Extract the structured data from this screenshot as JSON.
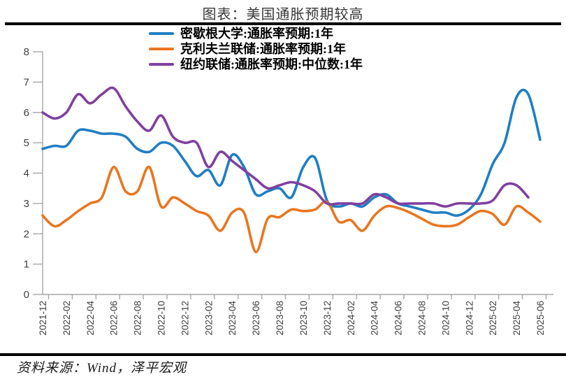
{
  "title": "图表：美国通胀预期较高",
  "source": "资料来源：Wind，泽平宏观",
  "chart_data": {
    "type": "line",
    "title": "图表：美国通胀预期较高",
    "xlabel": "",
    "ylabel": "",
    "ylim": [
      0,
      8
    ],
    "yticks": [
      0,
      1,
      2,
      3,
      4,
      5,
      6,
      7,
      8
    ],
    "grid": false,
    "legend_position": "top-left-inside",
    "x_tick_interval": 2,
    "axis_color": "#a6a6a6",
    "tick_label_color": "#404040",
    "x": [
      "2021-12",
      "2022-01",
      "2022-02",
      "2022-03",
      "2022-04",
      "2022-05",
      "2022-06",
      "2022-07",
      "2022-08",
      "2022-09",
      "2022-10",
      "2022-11",
      "2022-12",
      "2023-01",
      "2023-02",
      "2023-03",
      "2023-04",
      "2023-05",
      "2023-06",
      "2023-07",
      "2023-08",
      "2023-09",
      "2023-10",
      "2023-11",
      "2023-12",
      "2024-01",
      "2024-02",
      "2024-03",
      "2024-04",
      "2024-05",
      "2024-06",
      "2024-07",
      "2024-08",
      "2024-09",
      "2024-10",
      "2024-11",
      "2024-12",
      "2025-01",
      "2025-02",
      "2025-03",
      "2025-04",
      "2025-05",
      "2025-06"
    ],
    "series": [
      {
        "name": "密歇根大学:通胀率预期:1年",
        "color": "#1f7ec4",
        "values": [
          4.8,
          4.9,
          4.9,
          5.4,
          5.4,
          5.3,
          5.3,
          5.2,
          4.8,
          4.7,
          5.0,
          4.9,
          4.4,
          3.9,
          4.1,
          3.6,
          4.6,
          4.2,
          3.3,
          3.4,
          3.5,
          3.2,
          4.2,
          4.5,
          3.1,
          2.9,
          3.0,
          2.9,
          3.2,
          3.3,
          3.0,
          2.9,
          2.8,
          2.7,
          2.7,
          2.6,
          2.8,
          3.3,
          4.3,
          5.0,
          6.5,
          6.6,
          5.1
        ]
      },
      {
        "name": "克利夫兰联储:通胀率预期:1年",
        "color": "#e8761f",
        "values": [
          2.6,
          2.25,
          2.45,
          2.75,
          3.0,
          3.2,
          4.2,
          3.4,
          3.4,
          4.2,
          2.9,
          3.2,
          3.0,
          2.75,
          2.6,
          2.1,
          2.7,
          2.7,
          1.4,
          2.5,
          2.55,
          2.8,
          2.75,
          2.8,
          3.05,
          2.4,
          2.45,
          2.1,
          2.6,
          2.9,
          2.85,
          2.7,
          2.5,
          2.3,
          2.25,
          2.3,
          2.55,
          2.75,
          2.65,
          2.3,
          2.9,
          2.7,
          2.4
        ]
      },
      {
        "name": "纽约联储:通胀率预期:中位数:1年",
        "color": "#8040a0",
        "values": [
          6.0,
          5.8,
          6.0,
          6.6,
          6.3,
          6.6,
          6.8,
          6.2,
          5.7,
          5.4,
          5.9,
          5.2,
          5.0,
          5.0,
          4.2,
          4.7,
          4.4,
          4.1,
          3.8,
          3.5,
          3.6,
          3.7,
          3.6,
          3.4,
          3.0,
          3.0,
          3.0,
          3.0,
          3.3,
          3.2,
          3.0,
          3.0,
          3.0,
          3.0,
          2.9,
          3.0,
          3.0,
          3.0,
          3.1,
          3.6,
          3.6,
          3.2
        ]
      }
    ]
  }
}
